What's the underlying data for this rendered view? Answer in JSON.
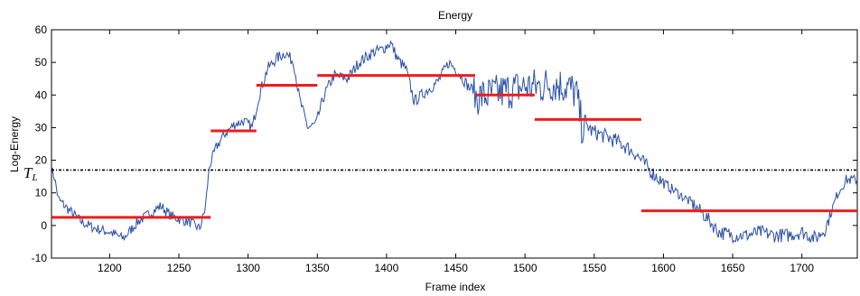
{
  "chart_data": {
    "type": "line",
    "title": "Energy",
    "xlabel": "Frame index",
    "ylabel": "Log-Energy",
    "xlim": [
      1158,
      1740
    ],
    "ylim": [
      -10,
      60
    ],
    "x_ticks": [
      1200,
      1250,
      1300,
      1350,
      1400,
      1450,
      1500,
      1550,
      1600,
      1650,
      1700
    ],
    "y_ticks": [
      -10,
      0,
      10,
      20,
      30,
      40,
      50,
      60
    ],
    "grid": false,
    "threshold": {
      "label": "T_L",
      "value": 17
    },
    "series": [
      {
        "color": "#2a4fa8",
        "style": "noisy-line",
        "points": [
          [
            1158,
            17
          ],
          [
            1160,
            15
          ],
          [
            1163,
            8
          ],
          [
            1170,
            5
          ],
          [
            1180,
            1
          ],
          [
            1190,
            -1
          ],
          [
            1200,
            -2
          ],
          [
            1210,
            -4
          ],
          [
            1220,
            1
          ],
          [
            1230,
            4
          ],
          [
            1237,
            6
          ],
          [
            1244,
            3
          ],
          [
            1250,
            2
          ],
          [
            1258,
            1
          ],
          [
            1265,
            -1
          ],
          [
            1269,
            5
          ],
          [
            1272,
            18
          ],
          [
            1277,
            24
          ],
          [
            1283,
            28
          ],
          [
            1290,
            31
          ],
          [
            1297,
            32
          ],
          [
            1303,
            30
          ],
          [
            1308,
            40
          ],
          [
            1314,
            48
          ],
          [
            1320,
            51
          ],
          [
            1327,
            53
          ],
          [
            1333,
            50
          ],
          [
            1337,
            39
          ],
          [
            1343,
            30
          ],
          [
            1349,
            31
          ],
          [
            1355,
            40
          ],
          [
            1362,
            46
          ],
          [
            1372,
            45
          ],
          [
            1380,
            50
          ],
          [
            1390,
            53
          ],
          [
            1397,
            54
          ],
          [
            1403,
            56
          ],
          [
            1408,
            51
          ],
          [
            1414,
            48
          ],
          [
            1420,
            38
          ],
          [
            1428,
            41
          ],
          [
            1437,
            44
          ],
          [
            1445,
            50
          ],
          [
            1452,
            47
          ],
          [
            1460,
            42
          ],
          [
            1470,
            42
          ],
          [
            1480,
            43
          ],
          [
            1490,
            44
          ],
          [
            1500,
            45
          ],
          [
            1510,
            45
          ],
          [
            1520,
            46
          ],
          [
            1530,
            45
          ],
          [
            1537,
            43
          ],
          [
            1541,
            33
          ],
          [
            1548,
            29
          ],
          [
            1560,
            27
          ],
          [
            1570,
            25
          ],
          [
            1580,
            22
          ],
          [
            1590,
            17
          ],
          [
            1600,
            13
          ],
          [
            1610,
            10
          ],
          [
            1620,
            7
          ],
          [
            1630,
            3
          ],
          [
            1640,
            -2
          ],
          [
            1650,
            -3
          ],
          [
            1660,
            -3
          ],
          [
            1670,
            -2
          ],
          [
            1680,
            -3
          ],
          [
            1690,
            -3
          ],
          [
            1700,
            -2
          ],
          [
            1710,
            -4
          ],
          [
            1717,
            -1
          ],
          [
            1721,
            4
          ],
          [
            1726,
            10
          ],
          [
            1732,
            14
          ],
          [
            1740,
            14
          ]
        ]
      }
    ],
    "segments": {
      "color": "#ee1c1c",
      "items": [
        {
          "x0": 1158,
          "x1": 1273,
          "y": 2.5
        },
        {
          "x0": 1273,
          "x1": 1306,
          "y": 29
        },
        {
          "x0": 1306,
          "x1": 1350,
          "y": 43
        },
        {
          "x0": 1350,
          "x1": 1464,
          "y": 46
        },
        {
          "x0": 1465,
          "x1": 1507,
          "y": 40
        },
        {
          "x0": 1507,
          "x1": 1584,
          "y": 32.5
        },
        {
          "x0": 1584,
          "x1": 1740,
          "y": 4.5
        }
      ]
    }
  }
}
